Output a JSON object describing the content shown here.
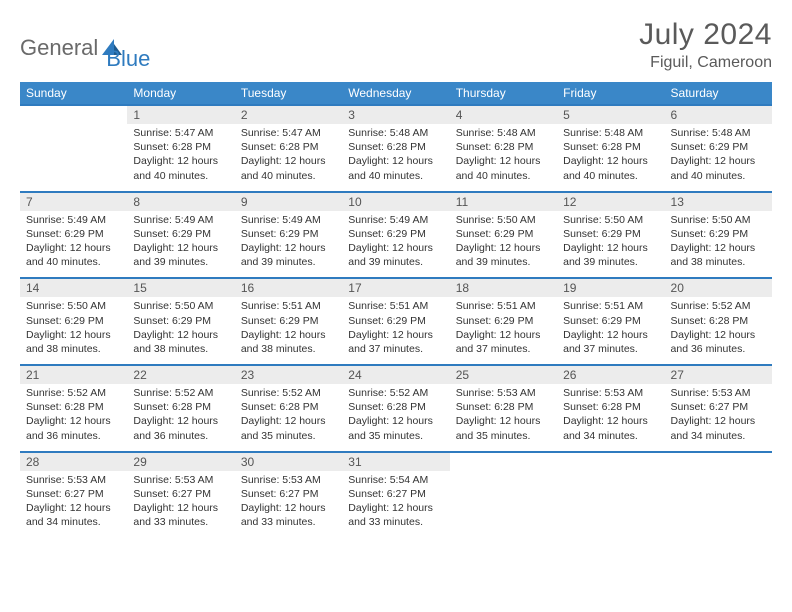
{
  "logo": {
    "text1": "General",
    "text2": "Blue"
  },
  "title": "July 2024",
  "location": "Figuil, Cameroon",
  "colors": {
    "header_bg": "#3a87c8",
    "header_text": "#ffffff",
    "num_bg": "#ececec",
    "border": "#2f7bbf",
    "logo_gray": "#6a6a6a",
    "logo_blue": "#2f7bbf"
  },
  "day_names": [
    "Sunday",
    "Monday",
    "Tuesday",
    "Wednesday",
    "Thursday",
    "Friday",
    "Saturday"
  ],
  "weeks": [
    {
      "nums": [
        "",
        "1",
        "2",
        "3",
        "4",
        "5",
        "6"
      ],
      "cells": [
        null,
        {
          "sunrise": "Sunrise: 5:47 AM",
          "sunset": "Sunset: 6:28 PM",
          "day1": "Daylight: 12 hours",
          "day2": "and 40 minutes."
        },
        {
          "sunrise": "Sunrise: 5:47 AM",
          "sunset": "Sunset: 6:28 PM",
          "day1": "Daylight: 12 hours",
          "day2": "and 40 minutes."
        },
        {
          "sunrise": "Sunrise: 5:48 AM",
          "sunset": "Sunset: 6:28 PM",
          "day1": "Daylight: 12 hours",
          "day2": "and 40 minutes."
        },
        {
          "sunrise": "Sunrise: 5:48 AM",
          "sunset": "Sunset: 6:28 PM",
          "day1": "Daylight: 12 hours",
          "day2": "and 40 minutes."
        },
        {
          "sunrise": "Sunrise: 5:48 AM",
          "sunset": "Sunset: 6:28 PM",
          "day1": "Daylight: 12 hours",
          "day2": "and 40 minutes."
        },
        {
          "sunrise": "Sunrise: 5:48 AM",
          "sunset": "Sunset: 6:29 PM",
          "day1": "Daylight: 12 hours",
          "day2": "and 40 minutes."
        }
      ]
    },
    {
      "nums": [
        "7",
        "8",
        "9",
        "10",
        "11",
        "12",
        "13"
      ],
      "cells": [
        {
          "sunrise": "Sunrise: 5:49 AM",
          "sunset": "Sunset: 6:29 PM",
          "day1": "Daylight: 12 hours",
          "day2": "and 40 minutes."
        },
        {
          "sunrise": "Sunrise: 5:49 AM",
          "sunset": "Sunset: 6:29 PM",
          "day1": "Daylight: 12 hours",
          "day2": "and 39 minutes."
        },
        {
          "sunrise": "Sunrise: 5:49 AM",
          "sunset": "Sunset: 6:29 PM",
          "day1": "Daylight: 12 hours",
          "day2": "and 39 minutes."
        },
        {
          "sunrise": "Sunrise: 5:49 AM",
          "sunset": "Sunset: 6:29 PM",
          "day1": "Daylight: 12 hours",
          "day2": "and 39 minutes."
        },
        {
          "sunrise": "Sunrise: 5:50 AM",
          "sunset": "Sunset: 6:29 PM",
          "day1": "Daylight: 12 hours",
          "day2": "and 39 minutes."
        },
        {
          "sunrise": "Sunrise: 5:50 AM",
          "sunset": "Sunset: 6:29 PM",
          "day1": "Daylight: 12 hours",
          "day2": "and 39 minutes."
        },
        {
          "sunrise": "Sunrise: 5:50 AM",
          "sunset": "Sunset: 6:29 PM",
          "day1": "Daylight: 12 hours",
          "day2": "and 38 minutes."
        }
      ]
    },
    {
      "nums": [
        "14",
        "15",
        "16",
        "17",
        "18",
        "19",
        "20"
      ],
      "cells": [
        {
          "sunrise": "Sunrise: 5:50 AM",
          "sunset": "Sunset: 6:29 PM",
          "day1": "Daylight: 12 hours",
          "day2": "and 38 minutes."
        },
        {
          "sunrise": "Sunrise: 5:50 AM",
          "sunset": "Sunset: 6:29 PM",
          "day1": "Daylight: 12 hours",
          "day2": "and 38 minutes."
        },
        {
          "sunrise": "Sunrise: 5:51 AM",
          "sunset": "Sunset: 6:29 PM",
          "day1": "Daylight: 12 hours",
          "day2": "and 38 minutes."
        },
        {
          "sunrise": "Sunrise: 5:51 AM",
          "sunset": "Sunset: 6:29 PM",
          "day1": "Daylight: 12 hours",
          "day2": "and 37 minutes."
        },
        {
          "sunrise": "Sunrise: 5:51 AM",
          "sunset": "Sunset: 6:29 PM",
          "day1": "Daylight: 12 hours",
          "day2": "and 37 minutes."
        },
        {
          "sunrise": "Sunrise: 5:51 AM",
          "sunset": "Sunset: 6:29 PM",
          "day1": "Daylight: 12 hours",
          "day2": "and 37 minutes."
        },
        {
          "sunrise": "Sunrise: 5:52 AM",
          "sunset": "Sunset: 6:28 PM",
          "day1": "Daylight: 12 hours",
          "day2": "and 36 minutes."
        }
      ]
    },
    {
      "nums": [
        "21",
        "22",
        "23",
        "24",
        "25",
        "26",
        "27"
      ],
      "cells": [
        {
          "sunrise": "Sunrise: 5:52 AM",
          "sunset": "Sunset: 6:28 PM",
          "day1": "Daylight: 12 hours",
          "day2": "and 36 minutes."
        },
        {
          "sunrise": "Sunrise: 5:52 AM",
          "sunset": "Sunset: 6:28 PM",
          "day1": "Daylight: 12 hours",
          "day2": "and 36 minutes."
        },
        {
          "sunrise": "Sunrise: 5:52 AM",
          "sunset": "Sunset: 6:28 PM",
          "day1": "Daylight: 12 hours",
          "day2": "and 35 minutes."
        },
        {
          "sunrise": "Sunrise: 5:52 AM",
          "sunset": "Sunset: 6:28 PM",
          "day1": "Daylight: 12 hours",
          "day2": "and 35 minutes."
        },
        {
          "sunrise": "Sunrise: 5:53 AM",
          "sunset": "Sunset: 6:28 PM",
          "day1": "Daylight: 12 hours",
          "day2": "and 35 minutes."
        },
        {
          "sunrise": "Sunrise: 5:53 AM",
          "sunset": "Sunset: 6:28 PM",
          "day1": "Daylight: 12 hours",
          "day2": "and 34 minutes."
        },
        {
          "sunrise": "Sunrise: 5:53 AM",
          "sunset": "Sunset: 6:27 PM",
          "day1": "Daylight: 12 hours",
          "day2": "and 34 minutes."
        }
      ]
    },
    {
      "nums": [
        "28",
        "29",
        "30",
        "31",
        "",
        "",
        ""
      ],
      "cells": [
        {
          "sunrise": "Sunrise: 5:53 AM",
          "sunset": "Sunset: 6:27 PM",
          "day1": "Daylight: 12 hours",
          "day2": "and 34 minutes."
        },
        {
          "sunrise": "Sunrise: 5:53 AM",
          "sunset": "Sunset: 6:27 PM",
          "day1": "Daylight: 12 hours",
          "day2": "and 33 minutes."
        },
        {
          "sunrise": "Sunrise: 5:53 AM",
          "sunset": "Sunset: 6:27 PM",
          "day1": "Daylight: 12 hours",
          "day2": "and 33 minutes."
        },
        {
          "sunrise": "Sunrise: 5:54 AM",
          "sunset": "Sunset: 6:27 PM",
          "day1": "Daylight: 12 hours",
          "day2": "and 33 minutes."
        },
        null,
        null,
        null
      ]
    }
  ]
}
